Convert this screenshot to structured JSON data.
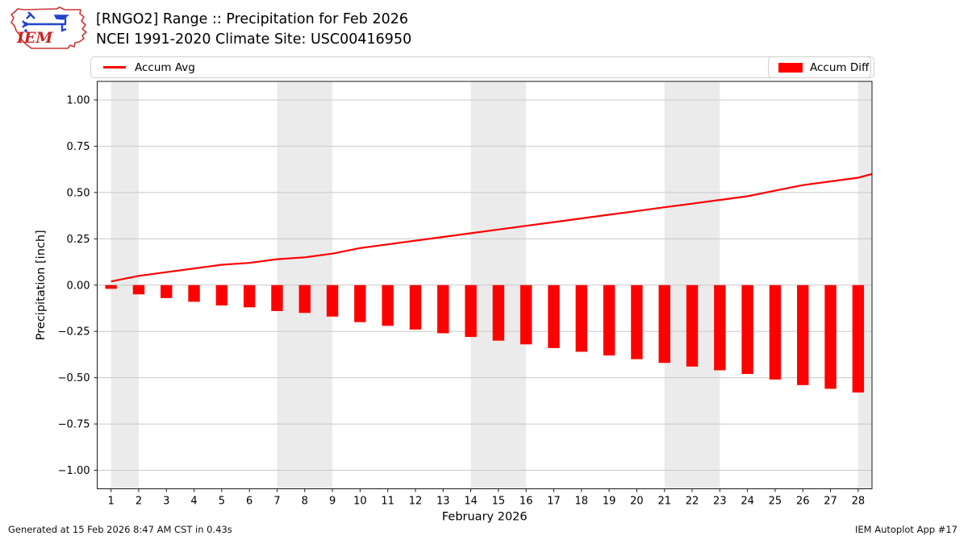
{
  "header": {
    "title_line1": "[RNGO2] Range :: Precipitation for Feb 2026",
    "title_line2": "NCEI 1991-2020 Climate Site: USC00416950",
    "logo_text": "IEM"
  },
  "legend": {
    "avg_label": "Accum Avg",
    "diff_label": "Accum Diff"
  },
  "footer": {
    "generated": "Generated at 15 Feb 2026 8:47 AM CST in 0.43s",
    "app": "IEM Autoplot App #17"
  },
  "colors": {
    "series_red": "#ff0000",
    "grid": "#c8c8c8",
    "weekend_band": "#ebebeb",
    "axis_border": "#1a1a1a",
    "logo_red": "#cc2222",
    "logo_blue": "#2244cc"
  },
  "chart_data": {
    "type": "bar",
    "title": "[RNGO2] Range :: Precipitation for Feb 2026 — NCEI 1991-2020 Climate Site: USC00416950",
    "xlabel": "February 2026",
    "ylabel": "Precipitation [inch]",
    "x": [
      1,
      2,
      3,
      4,
      5,
      6,
      7,
      8,
      9,
      10,
      11,
      12,
      13,
      14,
      15,
      16,
      17,
      18,
      19,
      20,
      21,
      22,
      23,
      24,
      25,
      26,
      27,
      28
    ],
    "series": [
      {
        "name": "Accum Avg",
        "type": "line",
        "color": "#ff0000",
        "values": [
          0.02,
          0.05,
          0.07,
          0.09,
          0.11,
          0.12,
          0.14,
          0.15,
          0.17,
          0.2,
          0.22,
          0.24,
          0.26,
          0.28,
          0.3,
          0.32,
          0.34,
          0.36,
          0.38,
          0.4,
          0.42,
          0.44,
          0.46,
          0.48,
          0.51,
          0.54,
          0.56,
          0.58
        ],
        "edge_value": 0.6
      },
      {
        "name": "Accum Diff",
        "type": "bar",
        "color": "#ff0000",
        "values": [
          -0.02,
          -0.05,
          -0.07,
          -0.09,
          -0.11,
          -0.12,
          -0.14,
          -0.15,
          -0.17,
          -0.2,
          -0.22,
          -0.24,
          -0.26,
          -0.28,
          -0.3,
          -0.32,
          -0.34,
          -0.36,
          -0.38,
          -0.4,
          -0.42,
          -0.44,
          -0.46,
          -0.48,
          -0.51,
          -0.54,
          -0.56,
          -0.58
        ]
      }
    ],
    "yticks": [
      1.0,
      0.75,
      0.5,
      0.25,
      0.0,
      -0.25,
      -0.5,
      -0.75,
      -1.0
    ],
    "ylim": [
      -1.1,
      1.1
    ],
    "grid": true,
    "weekend_bands_day_spans": [
      [
        0.5,
        1.5
      ],
      [
        6.5,
        8.5
      ],
      [
        13.5,
        15.5
      ],
      [
        20.5,
        22.5
      ],
      [
        27.5,
        28.5
      ]
    ],
    "legend_position": "top"
  }
}
